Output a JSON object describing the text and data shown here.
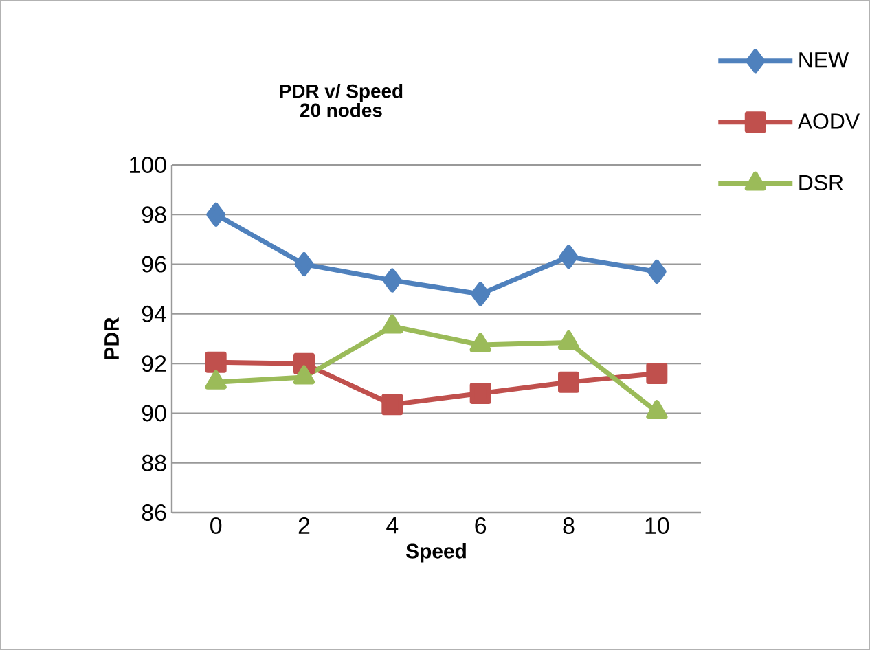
{
  "chart_data": {
    "type": "line",
    "title": "PDR v/ Speed",
    "subtitle": "20 nodes",
    "xlabel": "Speed",
    "ylabel": "PDR",
    "categories": [
      "0",
      "2",
      "4",
      "6",
      "8",
      "10"
    ],
    "series": [
      {
        "name": "NEW",
        "color": "#4f81bd",
        "marker": "diamond",
        "values": [
          98.0,
          96.0,
          95.35,
          94.8,
          96.3,
          95.7
        ]
      },
      {
        "name": "AODV",
        "color": "#c0504d",
        "marker": "square",
        "values": [
          92.05,
          92.0,
          90.35,
          90.8,
          91.25,
          91.6
        ]
      },
      {
        "name": "DSR",
        "color": "#9bbb59",
        "marker": "triangle",
        "values": [
          91.25,
          91.45,
          93.5,
          92.75,
          92.85,
          90.05
        ]
      }
    ],
    "ylim": [
      86,
      100
    ],
    "yticks": [
      86,
      88,
      90,
      92,
      94,
      96,
      98,
      100
    ],
    "grid": "y",
    "legend": "top right",
    "line_style": "solid"
  }
}
